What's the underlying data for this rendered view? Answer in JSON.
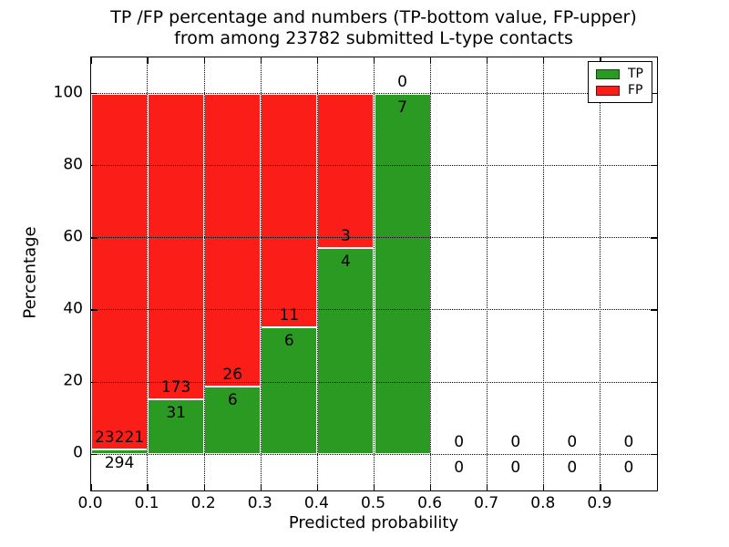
{
  "title": {
    "line1": "TP /FP percentage and numbers (TP-bottom value, FP-upper)",
    "line2": "from among 23782 submitted L-type contacts"
  },
  "chart_data": {
    "type": "bar",
    "stacked": true,
    "title": "TP /FP percentage and numbers (TP-bottom value, FP-upper) from among 23782 submitted L-type contacts",
    "xlabel": "Predicted probability",
    "ylabel": "Percentage",
    "xlim": [
      0.0,
      1.0
    ],
    "ylim": [
      -10,
      110
    ],
    "bin_width": 0.1,
    "bin_starts": [
      0.0,
      0.1,
      0.2,
      0.3,
      0.4,
      0.5,
      0.6,
      0.7,
      0.8,
      0.9
    ],
    "xtick_labels": [
      "0.0",
      "0.1",
      "0.2",
      "0.3",
      "0.4",
      "0.5",
      "0.6",
      "0.7",
      "0.8",
      "0.9"
    ],
    "ytick_labels": [
      "0",
      "20",
      "40",
      "60",
      "80",
      "100"
    ],
    "grid": "dotted-black-above-bars",
    "legend_position": "upper-right",
    "annotation_note": "TP count below green top, FP count above green top; bars normalized to 100%",
    "series": [
      {
        "name": "TP",
        "color": "#2a9a22",
        "counts": [
          294,
          31,
          6,
          6,
          4,
          7,
          0,
          0,
          0,
          0
        ]
      },
      {
        "name": "FP",
        "color": "#fb1d17",
        "counts": [
          23221,
          173,
          26,
          11,
          3,
          0,
          0,
          0,
          0,
          0
        ]
      }
    ]
  }
}
